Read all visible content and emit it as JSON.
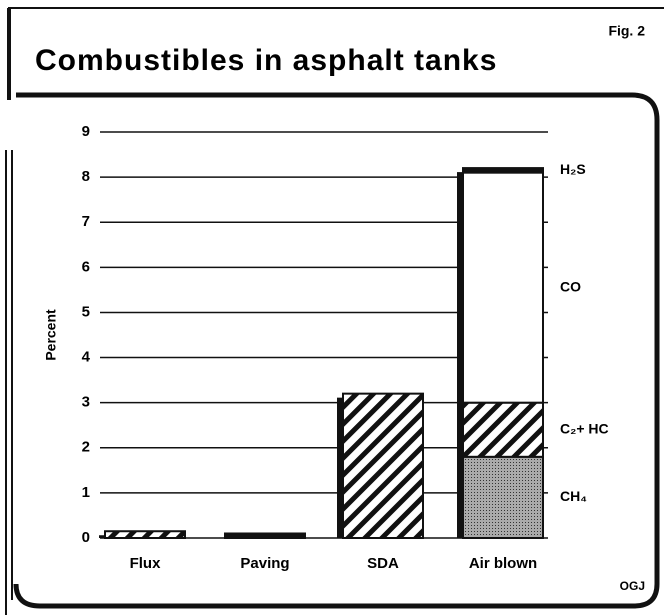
{
  "chart_data": {
    "type": "bar",
    "stacked": true,
    "title": "Combustibles in asphalt tanks",
    "figure": "Fig. 2",
    "source": "OGJ",
    "ylabel": "Percent",
    "categories": [
      "Flux",
      "Paving",
      "SDA",
      "Air blown"
    ],
    "series": [
      {
        "name": "CH₄",
        "color": "#9a9a9a",
        "pattern": "dots",
        "values": [
          0,
          0,
          0,
          1.8
        ]
      },
      {
        "name": "C₂+ HC",
        "color": "#ffffff",
        "pattern": "hatch",
        "values": [
          0.15,
          0,
          3.2,
          1.2
        ]
      },
      {
        "name": "CO",
        "color": "#ffffff",
        "pattern": "none",
        "values": [
          0,
          0,
          0,
          5.1
        ]
      },
      {
        "name": "H₂S",
        "color": "#111111",
        "pattern": "none",
        "values": [
          0,
          0.1,
          0,
          0.1
        ]
      }
    ],
    "ylim": [
      0,
      9
    ],
    "yticks": [
      0,
      1,
      2,
      3,
      4,
      5,
      6,
      7,
      8,
      9
    ],
    "grid": true
  }
}
